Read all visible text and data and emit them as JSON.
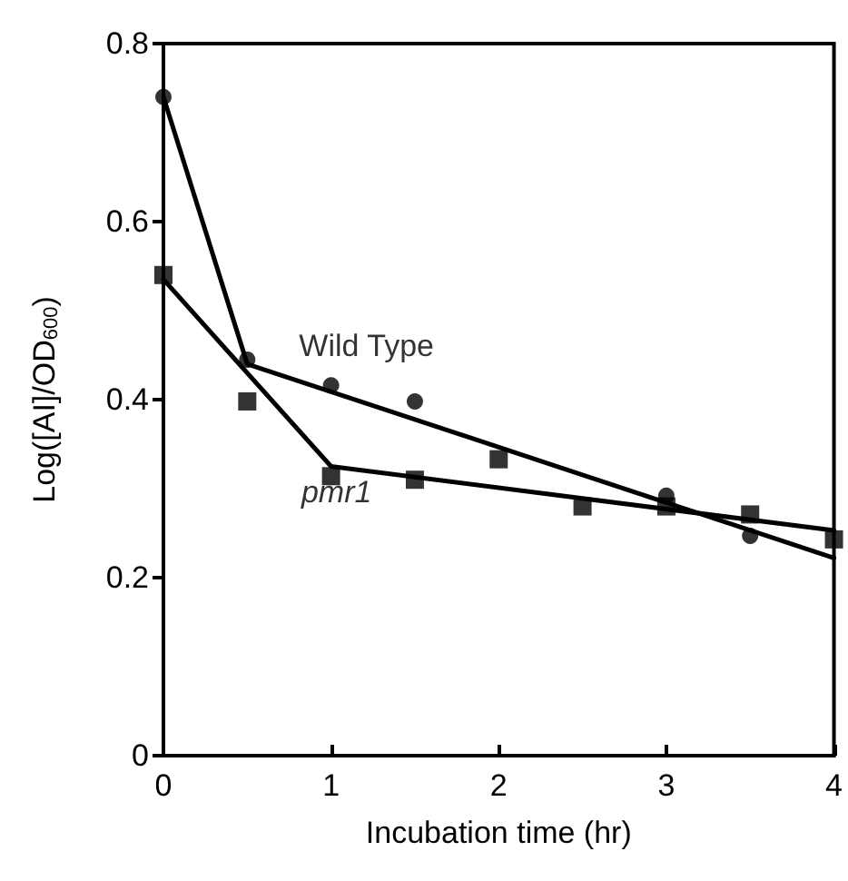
{
  "chart_data": {
    "type": "scatter",
    "xlabel": "Incubation time (hr)",
    "ylabel": "Log([AI]/OD$_{600}$)",
    "xlim": [
      0,
      4
    ],
    "xticks": [
      0,
      1,
      2,
      3,
      4
    ],
    "ylim": [
      0,
      0.8
    ],
    "yticks": [
      0,
      0.2,
      0.4,
      0.6,
      0.8
    ],
    "grid": false,
    "series": [
      {
        "name": "Wild Type",
        "marker": "circle",
        "color": "#000000",
        "x": [
          0,
          0.5,
          1,
          1.5,
          3,
          3.5
        ],
        "values": [
          0.74,
          0.445,
          0.416,
          0.398,
          0.292,
          0.247
        ]
      },
      {
        "name": "pmr1",
        "marker": "square",
        "color": "#000000",
        "x": [
          0,
          0.5,
          1,
          1.5,
          2,
          2.5,
          3,
          3.5,
          4
        ],
        "values": [
          0.54,
          0.398,
          0.314,
          0.31,
          0.333,
          0.28,
          0.28,
          0.271,
          0.243
        ]
      },
      {
        "type": "line",
        "marker": "none",
        "line_style": "solid",
        "color": "#000000",
        "x": [
          0,
          0.5,
          4
        ],
        "values": [
          0.74,
          0.44,
          0.222
        ]
      },
      {
        "type": "line",
        "marker": "none",
        "line_style": "solid",
        "color": "#000000",
        "x": [
          0,
          1,
          4
        ],
        "values": [
          0.535,
          0.325,
          0.253
        ]
      }
    ]
  }
}
